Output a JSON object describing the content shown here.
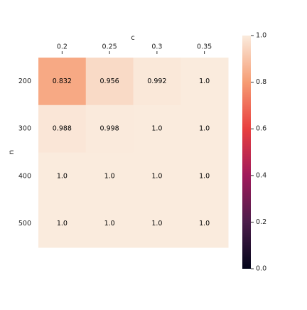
{
  "chart_data": {
    "type": "heatmap",
    "xlabel": "c",
    "ylabel": "n",
    "x_categories": [
      "0.2",
      "0.25",
      "0.3",
      "0.35"
    ],
    "y_categories": [
      "200",
      "300",
      "400",
      "500"
    ],
    "values": [
      [
        0.832,
        0.956,
        0.992,
        1.0
      ],
      [
        0.988,
        0.998,
        1.0,
        1.0
      ],
      [
        1.0,
        1.0,
        1.0,
        1.0
      ],
      [
        1.0,
        1.0,
        1.0,
        1.0
      ]
    ],
    "value_labels": [
      [
        "0.832",
        "0.956",
        "0.992",
        "1.0"
      ],
      [
        "0.988",
        "0.998",
        "1.0",
        "1.0"
      ],
      [
        "1.0",
        "1.0",
        "1.0",
        "1.0"
      ],
      [
        "1.0",
        "1.0",
        "1.0",
        "1.0"
      ]
    ],
    "clim": [
      0,
      1
    ],
    "cticks": [
      {
        "value": 0,
        "label": "0.0"
      },
      {
        "value": 0.2,
        "label": "0.2"
      },
      {
        "value": 0.4,
        "label": "0.4"
      },
      {
        "value": 0.6,
        "label": "0.6"
      },
      {
        "value": 0.8,
        "label": "0.8"
      },
      {
        "value": 1,
        "label": "1.0"
      }
    ],
    "colormap": [
      "#03051a",
      "#4c1d4b",
      "#a11a5b",
      "#e83f3f",
      "#f69c73",
      "#faebdd"
    ]
  }
}
